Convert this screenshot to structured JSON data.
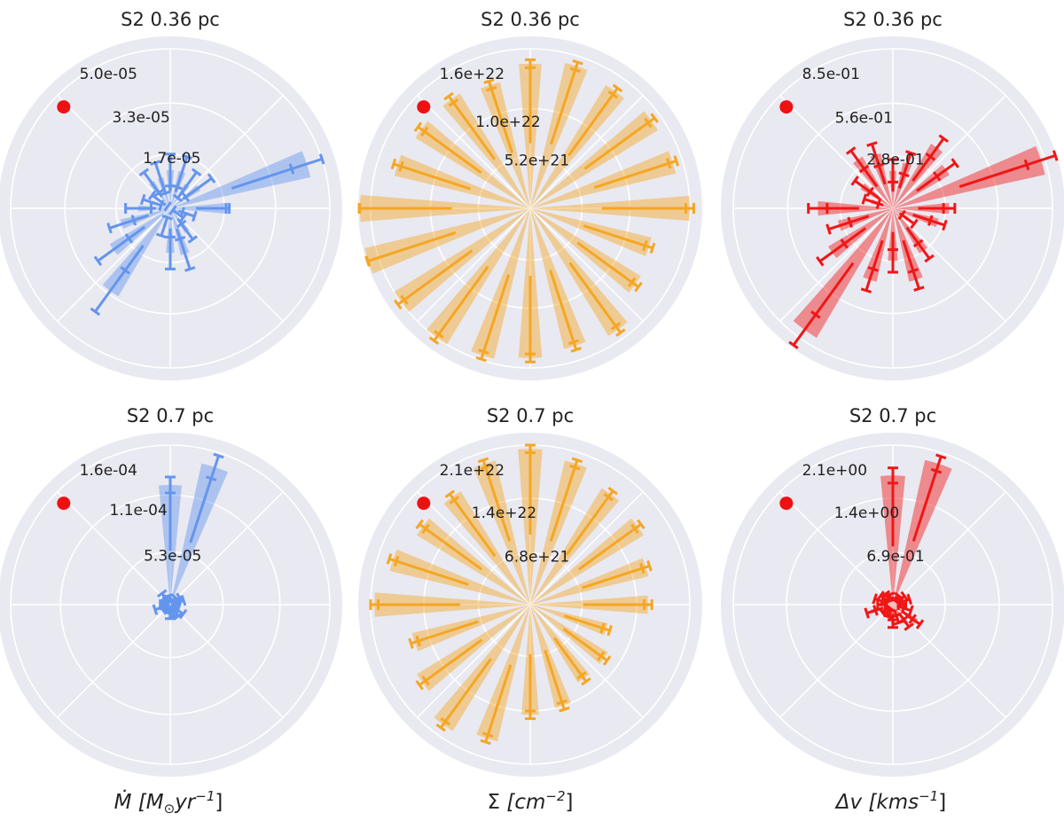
{
  "xlabels": [
    {
      "sym": "Ṁ",
      "rest": " [M",
      "sub": "⊙",
      "rest2": "yr",
      "sup": "−1",
      "close": "]"
    },
    {
      "sym": "Σ",
      "rest": " [cm",
      "sub": "",
      "rest2": "",
      "sup": "−2",
      "close": "]"
    },
    {
      "sym": "Δv",
      "rest": " [kms",
      "sub": "",
      "rest2": "",
      "sup": "−1",
      "close": "]"
    }
  ],
  "colors": {
    "disk": "#e9e9f1",
    "grid": "#ffffff",
    "blue": "#6495ED",
    "orange": "#F5A623",
    "red": "#F01616",
    "marker": "#ee1111"
  },
  "chart_data": [
    {
      "type": "polar-bar",
      "title": "S2 0.36 pc",
      "color": "blue",
      "rmax": 5e-05,
      "rticks": [
        "1.7e-05",
        "3.3e-05",
        "5.0e-05"
      ],
      "rtick_values": [
        1.7e-05,
        3.3e-05,
        5e-05
      ],
      "angles_deg": [
        0,
        18,
        36,
        54,
        72,
        90,
        108,
        126,
        144,
        162,
        180,
        198,
        216,
        234,
        252,
        270,
        288,
        306,
        324,
        342
      ],
      "values": [
        1.8e-05,
        4.5e-05,
        1.1e-05,
        9e-06,
        1.2e-05,
        1.2e-05,
        1e-05,
        1e-05,
        4e-06,
        6e-06,
        1e-05,
        1.6e-05,
        2.2e-05,
        3.2e-05,
        6e-06,
        1.4e-05,
        1.5e-05,
        9e-06,
        3e-06,
        6e-06
      ],
      "errors": [
        5e-07,
        5e-06,
        5e-06,
        5e-06,
        5e-06,
        5e-06,
        5e-06,
        4e-06,
        3e-06,
        3e-06,
        4e-06,
        4e-06,
        6e-06,
        8e-06,
        3e-06,
        5e-06,
        5e-06,
        3e-06,
        2e-06,
        2e-06
      ]
    },
    {
      "type": "polar-bar",
      "title": "S2 0.36 pc",
      "color": "orange",
      "rmax": 1.6e+22,
      "rticks": [
        "5.2e+21",
        "1.0e+22",
        "1.6e+22"
      ],
      "rtick_values": [
        5.2e+21,
        1e+22,
        1.6e+22
      ],
      "angles_deg": [
        0,
        18,
        36,
        54,
        72,
        90,
        108,
        126,
        144,
        162,
        180,
        198,
        216,
        234,
        252,
        270,
        288,
        306,
        324,
        342
      ],
      "values": [
        1.6e+22,
        1.5e+22,
        1.5e+22,
        1.45e+22,
        1.5e+22,
        1.45e+22,
        1.3e+22,
        1.35e+22,
        1.35e+22,
        1.4e+22,
        1.75e+22,
        1.75e+22,
        1.6e+22,
        1.6e+22,
        1.55e+22,
        1.5e+22,
        1.45e+22,
        1.5e+22,
        1.3e+22,
        1.25e+22
      ],
      "errors": [
        4e+20,
        4e+20,
        4e+20,
        4e+20,
        4e+20,
        4e+20,
        4e+20,
        4e+20,
        4e+20,
        4e+20,
        4e+20,
        4e+20,
        4e+20,
        4e+20,
        4e+20,
        4e+20,
        4e+20,
        4e+20,
        4e+20,
        4e+20
      ]
    },
    {
      "type": "polar-bar",
      "title": "S2 0.36 pc",
      "color": "red",
      "rmax": 0.85,
      "rticks": [
        "2.8e-01",
        "5.6e-01",
        "8.5e-01"
      ],
      "rtick_values": [
        0.28,
        0.56,
        0.85
      ],
      "angles_deg": [
        0,
        18,
        36,
        54,
        72,
        90,
        108,
        126,
        144,
        162,
        180,
        198,
        216,
        234,
        252,
        270,
        288,
        306,
        324,
        342
      ],
      "values": [
        0.3,
        0.83,
        0.35,
        0.4,
        0.25,
        0.2,
        0.3,
        0.32,
        0.2,
        0.12,
        0.4,
        0.3,
        0.4,
        0.8,
        0.4,
        0.28,
        0.4,
        0.28,
        0.1,
        0.25
      ],
      "errors": [
        0.03,
        0.08,
        0.06,
        0.06,
        0.06,
        0.06,
        0.06,
        0.06,
        0.05,
        0.04,
        0.05,
        0.06,
        0.08,
        0.1,
        0.06,
        0.06,
        0.05,
        0.05,
        0.04,
        0.04
      ]
    },
    {
      "type": "polar-bar",
      "title": "S2 0.7 pc",
      "color": "blue",
      "rmax": 0.00016,
      "rticks": [
        "5.3e-05",
        "1.1e-04",
        "1.6e-04"
      ],
      "rtick_values": [
        5.3e-05,
        0.00011,
        0.00016
      ],
      "angles_deg": [
        0,
        18,
        36,
        54,
        72,
        90,
        108,
        126,
        144,
        162,
        180,
        198,
        216,
        234,
        252,
        270,
        288,
        306,
        324,
        342
      ],
      "values": [
        5e-06,
        1e-05,
        8e-06,
        6e-06,
        0.000145,
        0.00012,
        6e-06,
        1e-05,
        6e-06,
        4e-06,
        7e-06,
        1.2e-05,
        6e-06,
        5e-06,
        5e-06,
        1e-05,
        8e-06,
        1e-05,
        1.2e-05,
        6e-06
      ],
      "errors": [
        3e-06,
        4e-06,
        4e-06,
        3e-06,
        1.2e-05,
        8e-06,
        3e-06,
        4e-06,
        3e-06,
        2e-06,
        3e-06,
        4e-06,
        3e-06,
        3e-06,
        3e-06,
        4e-06,
        4e-06,
        4e-06,
        4e-06,
        3e-06
      ]
    },
    {
      "type": "polar-bar",
      "title": "S2 0.7 pc",
      "color": "orange",
      "rmax": 2.1e+22,
      "rticks": [
        "6.8e+21",
        "1.4e+22",
        "2.1e+22"
      ],
      "rtick_values": [
        6.8e+21,
        1.4e+22,
        2.1e+22
      ],
      "angles_deg": [
        0,
        18,
        36,
        54,
        72,
        90,
        108,
        126,
        144,
        162,
        180,
        198,
        216,
        234,
        252,
        270,
        288,
        306,
        324,
        342
      ],
      "values": [
        1.55e+22,
        1.6e+22,
        1.75e+22,
        1.8e+22,
        1.95e+22,
        2.05e+22,
        1.95e+22,
        1.75e+22,
        1.75e+22,
        1.9e+22,
        2.05e+22,
        1.6e+22,
        1.75e+22,
        1.95e+22,
        1.85e+22,
        1.45e+22,
        1.4e+22,
        1.2e+22,
        1.2e+22,
        1.05e+22
      ],
      "errors": [
        5e+20,
        5e+20,
        5e+20,
        5e+20,
        5e+20,
        5e+20,
        5e+20,
        5e+20,
        5e+20,
        5e+20,
        5e+20,
        5e+20,
        5e+20,
        5e+20,
        5e+20,
        5e+20,
        5e+20,
        5e+20,
        5e+20,
        5e+20
      ]
    },
    {
      "type": "polar-bar",
      "title": "S2 0.7 pc",
      "color": "red",
      "rmax": 2.1,
      "rticks": [
        "6.9e-01",
        "1.4e+00",
        "2.1e+00"
      ],
      "rtick_values": [
        0.69,
        1.4,
        2.1
      ],
      "angles_deg": [
        0,
        18,
        36,
        54,
        72,
        90,
        108,
        126,
        144,
        162,
        180,
        198,
        216,
        234,
        252,
        270,
        288,
        306,
        324,
        342
      ],
      "values": [
        0.12,
        0.18,
        0.14,
        0.1,
        1.95,
        1.7,
        0.1,
        0.12,
        0.15,
        0.2,
        0.15,
        0.3,
        0.12,
        0.1,
        0.12,
        0.25,
        0.2,
        0.3,
        0.38,
        0.2
      ],
      "errors": [
        0.05,
        0.05,
        0.05,
        0.04,
        0.1,
        0.1,
        0.04,
        0.05,
        0.05,
        0.05,
        0.05,
        0.06,
        0.05,
        0.04,
        0.05,
        0.05,
        0.05,
        0.06,
        0.06,
        0.05
      ]
    }
  ]
}
